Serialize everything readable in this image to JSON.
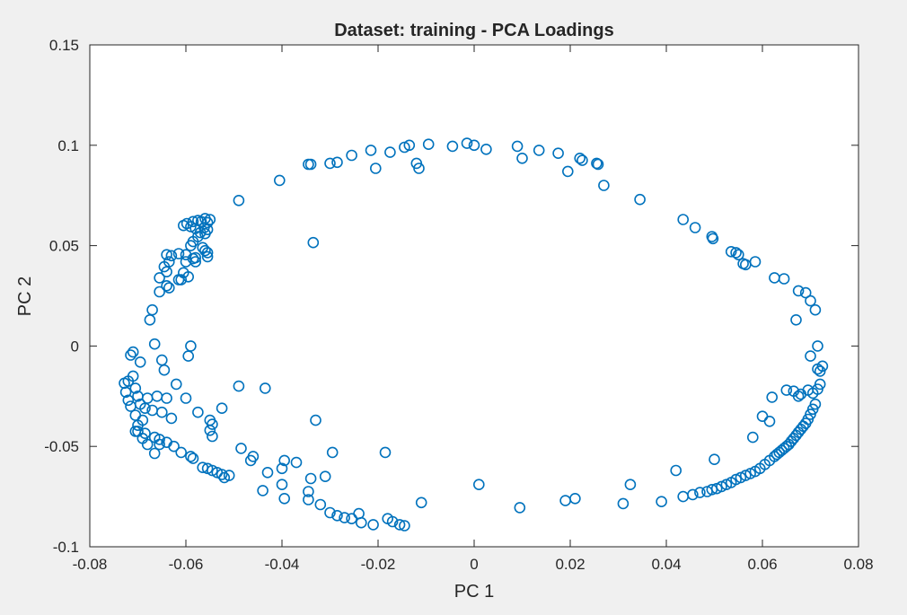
{
  "chart_data": {
    "type": "scatter",
    "title": "Dataset: training - PCA Loadings",
    "xlabel": "PC 1",
    "ylabel": "PC 2",
    "xlim": [
      -0.08,
      0.08
    ],
    "ylim": [
      -0.1,
      0.15
    ],
    "xticks": [
      -0.08,
      -0.06,
      -0.04,
      -0.02,
      0,
      0.02,
      0.04,
      0.06,
      0.08
    ],
    "xtick_labels": [
      "-0.08",
      "-0.06",
      "-0.04",
      "-0.02",
      "0",
      "0.02",
      "0.04",
      "0.06",
      "0.08"
    ],
    "yticks": [
      -0.1,
      -0.05,
      0,
      0.05,
      0.1,
      0.15
    ],
    "ytick_labels": [
      "-0.1",
      "-0.05",
      "0",
      "0.05",
      "0.1",
      "0.15"
    ],
    "grid": false,
    "marker": "open-circle",
    "marker_color": "#0072bd",
    "points": [
      [
        -0.049,
        0.0725
      ],
      [
        -0.0405,
        0.0825
      ],
      [
        -0.0345,
        0.0905
      ],
      [
        -0.034,
        0.0905
      ],
      [
        -0.03,
        0.091
      ],
      [
        -0.0285,
        0.0915
      ],
      [
        -0.0255,
        0.095
      ],
      [
        -0.0215,
        0.0975
      ],
      [
        -0.0205,
        0.0885
      ],
      [
        -0.0175,
        0.0965
      ],
      [
        -0.0145,
        0.099
      ],
      [
        -0.0135,
        0.1
      ],
      [
        -0.012,
        0.091
      ],
      [
        -0.0115,
        0.0885
      ],
      [
        -0.0095,
        0.1005
      ],
      [
        -0.0045,
        0.0995
      ],
      [
        -0.0015,
        0.101
      ],
      [
        0.0,
        0.1
      ],
      [
        0.0025,
        0.098
      ],
      [
        0.009,
        0.0995
      ],
      [
        0.01,
        0.0935
      ],
      [
        0.0135,
        0.0975
      ],
      [
        0.0175,
        0.096
      ],
      [
        0.0195,
        0.087
      ],
      [
        0.022,
        0.0935
      ],
      [
        0.0225,
        0.0925
      ],
      [
        0.0255,
        0.091
      ],
      [
        0.0258,
        0.0905
      ],
      [
        0.027,
        0.08
      ],
      [
        0.0345,
        0.073
      ],
      [
        -0.0335,
        0.0515
      ],
      [
        0.0435,
        0.063
      ],
      [
        0.046,
        0.059
      ],
      [
        0.0495,
        0.0545
      ],
      [
        0.0497,
        0.0535
      ],
      [
        0.0535,
        0.047
      ],
      [
        0.0545,
        0.0465
      ],
      [
        0.055,
        0.0455
      ],
      [
        0.056,
        0.041
      ],
      [
        0.0565,
        0.0405
      ],
      [
        0.0585,
        0.042
      ],
      [
        0.0625,
        0.034
      ],
      [
        0.0645,
        0.0335
      ],
      [
        0.0675,
        0.0275
      ],
      [
        0.069,
        0.0265
      ],
      [
        0.07,
        0.0225
      ],
      [
        0.071,
        0.018
      ],
      [
        0.067,
        0.013
      ],
      [
        0.0715,
        0.0
      ],
      [
        0.07,
        -0.005
      ],
      [
        0.0715,
        -0.0115
      ],
      [
        0.072,
        -0.0125
      ],
      [
        0.0725,
        -0.01
      ],
      [
        0.072,
        -0.019
      ],
      [
        0.0715,
        -0.0215
      ],
      [
        0.0705,
        -0.0235
      ],
      [
        0.0695,
        -0.022
      ],
      [
        0.068,
        -0.024
      ],
      [
        0.0675,
        -0.025
      ],
      [
        0.0665,
        -0.0225
      ],
      [
        0.065,
        -0.022
      ],
      [
        0.062,
        -0.0255
      ],
      [
        0.06,
        -0.035
      ],
      [
        0.0615,
        -0.0375
      ],
      [
        0.058,
        -0.0455
      ],
      [
        0.071,
        -0.029
      ],
      [
        0.0705,
        -0.0315
      ],
      [
        0.07,
        -0.034
      ],
      [
        0.0695,
        -0.0365
      ],
      [
        0.069,
        -0.0385
      ],
      [
        0.0685,
        -0.04
      ],
      [
        0.068,
        -0.0415
      ],
      [
        0.0675,
        -0.043
      ],
      [
        0.067,
        -0.0445
      ],
      [
        0.0665,
        -0.046
      ],
      [
        0.066,
        -0.0475
      ],
      [
        0.0655,
        -0.049
      ],
      [
        0.065,
        -0.05
      ],
      [
        0.0645,
        -0.051
      ],
      [
        0.064,
        -0.052
      ],
      [
        0.0635,
        -0.053
      ],
      [
        0.063,
        -0.054
      ],
      [
        0.0625,
        -0.055
      ],
      [
        0.0615,
        -0.057
      ],
      [
        0.0605,
        -0.059
      ],
      [
        0.0595,
        -0.061
      ],
      [
        0.0585,
        -0.0625
      ],
      [
        0.0575,
        -0.0635
      ],
      [
        0.0565,
        -0.0645
      ],
      [
        0.0555,
        -0.0655
      ],
      [
        0.0545,
        -0.0665
      ],
      [
        0.0535,
        -0.068
      ],
      [
        0.0525,
        -0.069
      ],
      [
        0.0515,
        -0.07
      ],
      [
        0.0505,
        -0.071
      ],
      [
        0.0495,
        -0.0715
      ],
      [
        0.0485,
        -0.0725
      ],
      [
        0.047,
        -0.073
      ],
      [
        0.0455,
        -0.074
      ],
      [
        0.05,
        -0.0565
      ],
      [
        0.042,
        -0.062
      ],
      [
        0.0435,
        -0.075
      ],
      [
        0.039,
        -0.0775
      ],
      [
        0.0325,
        -0.069
      ],
      [
        0.031,
        -0.0785
      ],
      [
        0.021,
        -0.076
      ],
      [
        0.019,
        -0.077
      ],
      [
        0.0095,
        -0.0805
      ],
      [
        0.001,
        -0.069
      ],
      [
        -0.011,
        -0.078
      ],
      [
        -0.0145,
        -0.0895
      ],
      [
        -0.0155,
        -0.089
      ],
      [
        -0.017,
        -0.0875
      ],
      [
        -0.018,
        -0.086
      ],
      [
        -0.021,
        -0.089
      ],
      [
        -0.0235,
        -0.088
      ],
      [
        -0.024,
        -0.0835
      ],
      [
        -0.0255,
        -0.086
      ],
      [
        -0.027,
        -0.0855
      ],
      [
        -0.0285,
        -0.0845
      ],
      [
        -0.03,
        -0.083
      ],
      [
        -0.032,
        -0.079
      ],
      [
        -0.0345,
        -0.0765
      ],
      [
        -0.0345,
        -0.0725
      ],
      [
        -0.034,
        -0.066
      ],
      [
        -0.031,
        -0.065
      ],
      [
        -0.0295,
        -0.053
      ],
      [
        -0.033,
        -0.037
      ],
      [
        -0.037,
        -0.058
      ],
      [
        -0.0395,
        -0.057
      ],
      [
        -0.04,
        -0.061
      ],
      [
        -0.04,
        -0.069
      ],
      [
        -0.0395,
        -0.076
      ],
      [
        -0.044,
        -0.072
      ],
      [
        -0.043,
        -0.063
      ],
      [
        -0.0185,
        -0.053
      ],
      [
        -0.046,
        -0.055
      ],
      [
        -0.0465,
        -0.057
      ],
      [
        -0.0485,
        -0.051
      ],
      [
        -0.049,
        -0.02
      ],
      [
        -0.0435,
        -0.021
      ],
      [
        -0.051,
        -0.0645
      ],
      [
        -0.052,
        -0.0655
      ],
      [
        -0.0525,
        -0.064
      ],
      [
        -0.0535,
        -0.063
      ],
      [
        -0.0545,
        -0.062
      ],
      [
        -0.0555,
        -0.061
      ],
      [
        -0.0565,
        -0.0605
      ],
      [
        -0.059,
        -0.055
      ],
      [
        -0.0585,
        -0.056
      ],
      [
        -0.061,
        -0.053
      ],
      [
        -0.0625,
        -0.05
      ],
      [
        -0.064,
        -0.048
      ],
      [
        -0.0655,
        -0.049
      ],
      [
        -0.0665,
        -0.0455
      ],
      [
        -0.0685,
        -0.0435
      ],
      [
        -0.0705,
        -0.0425
      ],
      [
        -0.0655,
        -0.0465
      ],
      [
        -0.0665,
        -0.0535
      ],
      [
        -0.068,
        -0.049
      ],
      [
        -0.069,
        -0.046
      ],
      [
        -0.07,
        -0.0425
      ],
      [
        -0.055,
        -0.037
      ],
      [
        -0.0545,
        -0.039
      ],
      [
        -0.055,
        -0.042
      ],
      [
        -0.0545,
        -0.045
      ],
      [
        -0.0525,
        -0.031
      ],
      [
        -0.063,
        -0.036
      ],
      [
        -0.065,
        -0.033
      ],
      [
        -0.067,
        -0.032
      ],
      [
        -0.0685,
        -0.031
      ],
      [
        -0.069,
        -0.037
      ],
      [
        -0.07,
        -0.0395
      ],
      [
        -0.0705,
        -0.0345
      ],
      [
        -0.0715,
        -0.03
      ],
      [
        -0.072,
        -0.027
      ],
      [
        -0.0725,
        -0.023
      ],
      [
        -0.0728,
        -0.0185
      ],
      [
        -0.072,
        -0.0175
      ],
      [
        -0.071,
        -0.015
      ],
      [
        -0.0705,
        -0.021
      ],
      [
        -0.07,
        -0.025
      ],
      [
        -0.0695,
        -0.029
      ],
      [
        -0.068,
        -0.026
      ],
      [
        -0.066,
        -0.025
      ],
      [
        -0.064,
        -0.026
      ],
      [
        -0.06,
        -0.026
      ],
      [
        -0.0575,
        -0.033
      ],
      [
        -0.0695,
        -0.008
      ],
      [
        -0.071,
        -0.003
      ],
      [
        -0.0715,
        -0.0045
      ],
      [
        -0.0665,
        0.001
      ],
      [
        -0.065,
        -0.007
      ],
      [
        -0.0645,
        -0.012
      ],
      [
        -0.062,
        -0.019
      ],
      [
        -0.059,
        0.0
      ],
      [
        -0.0595,
        -0.005
      ],
      [
        -0.0675,
        0.013
      ],
      [
        -0.067,
        0.018
      ],
      [
        -0.0655,
        0.027
      ],
      [
        -0.064,
        0.03
      ],
      [
        -0.0635,
        0.029
      ],
      [
        -0.061,
        0.033
      ],
      [
        -0.0605,
        0.0365
      ],
      [
        -0.0595,
        0.0345
      ],
      [
        -0.058,
        0.042
      ],
      [
        -0.058,
        0.044
      ],
      [
        -0.06,
        0.0455
      ],
      [
        -0.0615,
        0.046
      ],
      [
        -0.063,
        0.045
      ],
      [
        -0.064,
        0.0455
      ],
      [
        -0.0635,
        0.042
      ],
      [
        -0.064,
        0.037
      ],
      [
        -0.0645,
        0.0395
      ],
      [
        -0.0655,
        0.034
      ],
      [
        -0.0615,
        0.033
      ],
      [
        -0.0605,
        0.06
      ],
      [
        -0.0598,
        0.061
      ],
      [
        -0.059,
        0.0595
      ],
      [
        -0.0585,
        0.062
      ],
      [
        -0.0575,
        0.0625
      ],
      [
        -0.0568,
        0.062
      ],
      [
        -0.056,
        0.0635
      ],
      [
        -0.0555,
        0.0615
      ],
      [
        -0.055,
        0.063
      ],
      [
        -0.0562,
        0.059
      ],
      [
        -0.058,
        0.0585
      ],
      [
        -0.057,
        0.0565
      ],
      [
        -0.056,
        0.056
      ],
      [
        -0.0555,
        0.058
      ],
      [
        -0.0575,
        0.0545
      ],
      [
        -0.0585,
        0.052
      ],
      [
        -0.059,
        0.05
      ],
      [
        -0.0565,
        0.049
      ],
      [
        -0.056,
        0.0475
      ],
      [
        -0.0555,
        0.0465
      ],
      [
        -0.0555,
        0.0445
      ],
      [
        -0.0585,
        0.0435
      ],
      [
        -0.06,
        0.042
      ]
    ]
  }
}
